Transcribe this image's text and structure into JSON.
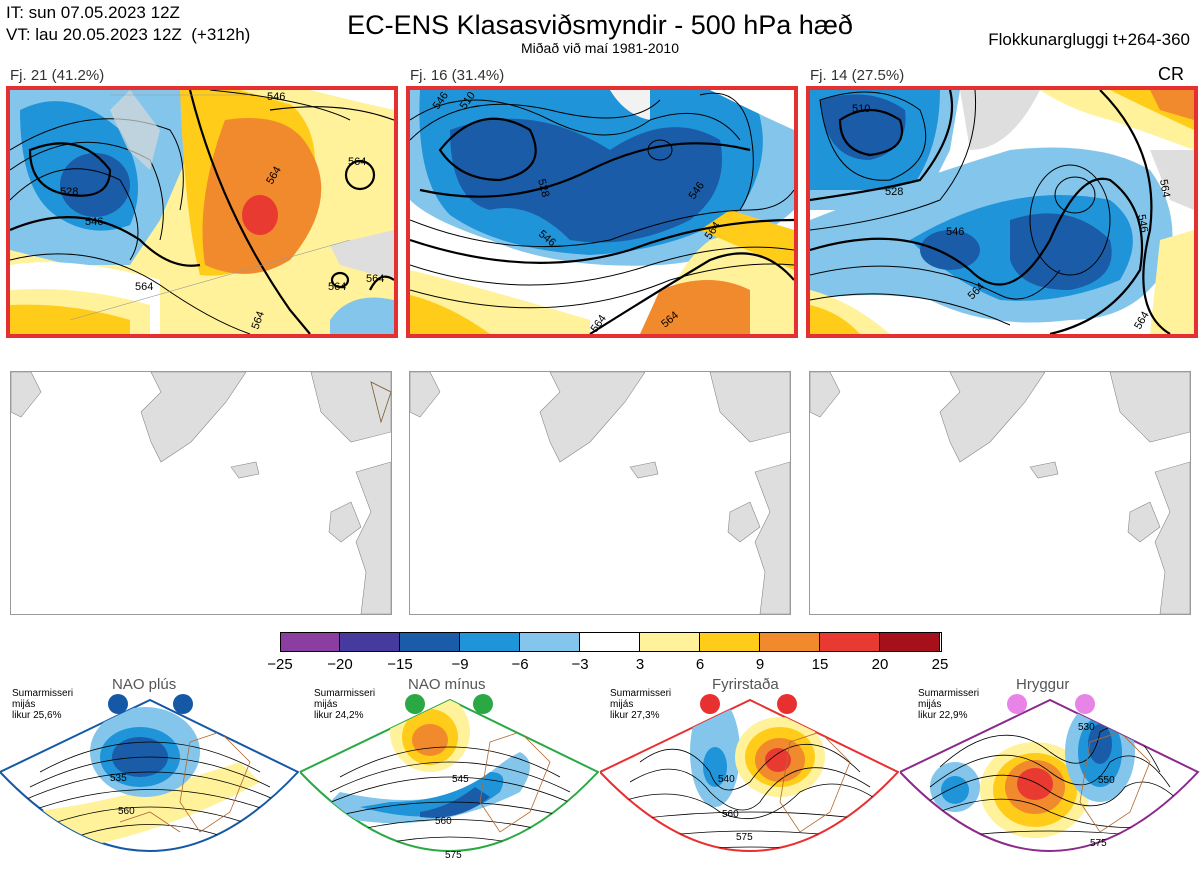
{
  "header": {
    "initial_time": "IT: sun 07.05.2023 12Z",
    "valid_time": "VT: lau 20.05.2023 12Z  (+312h)",
    "title": "EC-ENS Klasasviðsmyndir - 500 hPa hæð",
    "subtitle": "Miðað við maí 1981-2010",
    "window": "Flokkunargluggi t+264-360",
    "cr": "CR"
  },
  "clusters": [
    {
      "label": "Fj. 21 (41.2%)",
      "contours": [
        "546",
        "528",
        "546",
        "564",
        "564",
        "564",
        "564",
        "564",
        "564"
      ]
    },
    {
      "label": "Fj. 16 (31.4%)",
      "contours": [
        "546",
        "510",
        "528",
        "546",
        "546",
        "564",
        "564",
        "564"
      ]
    },
    {
      "label": "Fj. 14 (27.5%)",
      "contours": [
        "510",
        "528",
        "546",
        "564",
        "546",
        "564",
        "564"
      ]
    }
  ],
  "colorbar": {
    "ticks": [
      "−25",
      "−20",
      "−15",
      "−9",
      "−6",
      "−3",
      "3",
      "6",
      "9",
      "15",
      "20",
      "25"
    ],
    "colors": [
      "#8a3fa0",
      "#463a9e",
      "#1b5ca8",
      "#1f94d8",
      "#84c6eb",
      "#ffffff",
      "#fff29a",
      "#ffcc1a",
      "#f08a2c",
      "#e83a30",
      "#a5101a"
    ]
  },
  "regimes": [
    {
      "title": "NAO plús",
      "note": "Sumarmisseri\nmijás\nlikur 25,6%",
      "color": "#1559a6",
      "dot": "#1559a6",
      "labels": [
        "535",
        "560"
      ]
    },
    {
      "title": "NAO mínus",
      "note": "Sumarmisseri\nmijás\nlikur 24,2%",
      "color": "#2aa844",
      "dot": "#2aa844",
      "labels": [
        "545",
        "560",
        "575"
      ]
    },
    {
      "title": "Fyrirstaða",
      "note": "Sumarmisseri\nmijás\nlikur 27,3%",
      "color": "#e83030",
      "dot": "#e83030",
      "labels": [
        "540",
        "560",
        "575"
      ]
    },
    {
      "title": "Hryggur",
      "note": "Sumarmisseri\nmijás\nlikur 22,9%",
      "color": "#8a2a8a",
      "dot": "#e884e8",
      "labels": [
        "530",
        "550",
        "575"
      ]
    }
  ]
}
